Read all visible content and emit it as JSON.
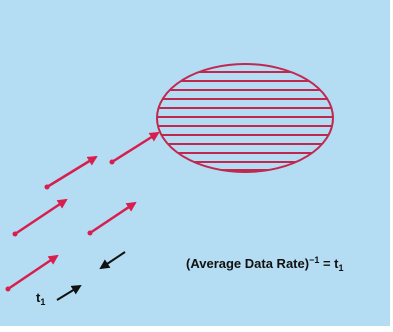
{
  "diagram": {
    "colors": {
      "background": "#b4dcf2",
      "arrow": "#d81e4e",
      "ellipse": "#c0284f",
      "label": "#111111",
      "pointer": "#111111"
    },
    "equation": {
      "prefix": "(Average Data Rate)",
      "exponent": "−1",
      "middle": " = t",
      "subscript": "1"
    },
    "interval_label": {
      "symbol": "t",
      "subscript": "1"
    }
  }
}
